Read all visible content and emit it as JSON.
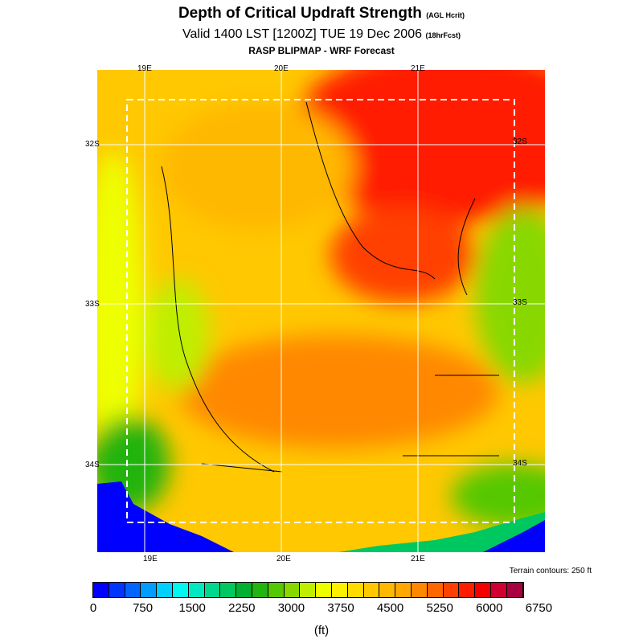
{
  "header": {
    "title": "Depth of Critical Updraft Strength",
    "title_units": "(AGL Hcrit)",
    "valid": "Valid 1400 LST [1200Z] TUE 19 Dec 2006",
    "forecast": "(18hrFcst)",
    "source": "RASP BLIPMAP - WRF Forecast"
  },
  "map": {
    "lon_labels": [
      "19E",
      "20E",
      "21E"
    ],
    "lat_labels": [
      "32S",
      "33S",
      "34S"
    ],
    "terrain_note": "Terrain contours: 250 ft"
  },
  "colorbar": {
    "unit": "(ft)",
    "min": 0,
    "max": 6750,
    "step": 250,
    "tick_labels": [
      "0",
      "750",
      "1500",
      "2250",
      "3000",
      "3750",
      "4500",
      "5250",
      "6000",
      "6750"
    ],
    "colors": [
      "#0000ff",
      "#0036ff",
      "#0066ff",
      "#009cff",
      "#00d0ff",
      "#00f8f0",
      "#00e8c0",
      "#00d890",
      "#00c860",
      "#00b030",
      "#22b410",
      "#55c800",
      "#88d800",
      "#c0ee00",
      "#eeff00",
      "#fff000",
      "#ffdc00",
      "#ffc800",
      "#ffb800",
      "#ffa800",
      "#ff8800",
      "#ff6600",
      "#ff4000",
      "#ff1c00",
      "#f50000",
      "#d00030",
      "#a80040"
    ]
  }
}
